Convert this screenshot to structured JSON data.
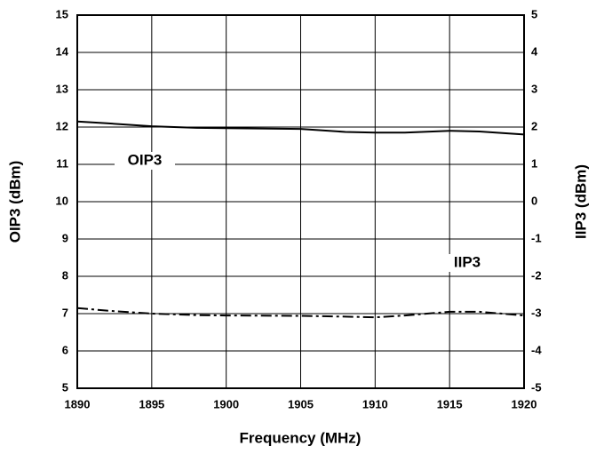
{
  "chart_data": {
    "type": "line",
    "xlabel": "Frequency (MHz)",
    "ylabel": "OIP3 (dBm)",
    "y2label": "IIP3 (dBm)",
    "x": [
      1890,
      1892,
      1895,
      1898,
      1900,
      1905,
      1908,
      1910,
      1912,
      1915,
      1917,
      1920
    ],
    "series": [
      {
        "name": "OIP3",
        "color": "#000000",
        "values": [
          12.15,
          12.1,
          12.02,
          11.98,
          11.97,
          11.95,
          11.87,
          11.85,
          11.85,
          11.9,
          11.88,
          11.8
        ]
      },
      {
        "name": "IIP3",
        "color": "#000000",
        "axis": "y2",
        "dashed": true,
        "values": [
          -2.85,
          -2.92,
          -3.0,
          -3.04,
          -3.05,
          -3.06,
          -3.08,
          -3.1,
          -3.05,
          -2.95,
          -2.95,
          -3.05
        ]
      }
    ],
    "xlim": [
      1890,
      1920
    ],
    "xticks": [
      1890,
      1895,
      1900,
      1905,
      1910,
      1915,
      1920
    ],
    "ylim": [
      5,
      15
    ],
    "yticks": [
      5,
      6,
      7,
      8,
      9,
      10,
      11,
      12,
      13,
      14,
      15
    ],
    "y2lim": [
      -5,
      5
    ],
    "y2ticks": [
      -5,
      -4,
      -3,
      -2,
      -1,
      0,
      1,
      2,
      3,
      4,
      5
    ],
    "grid": true
  }
}
